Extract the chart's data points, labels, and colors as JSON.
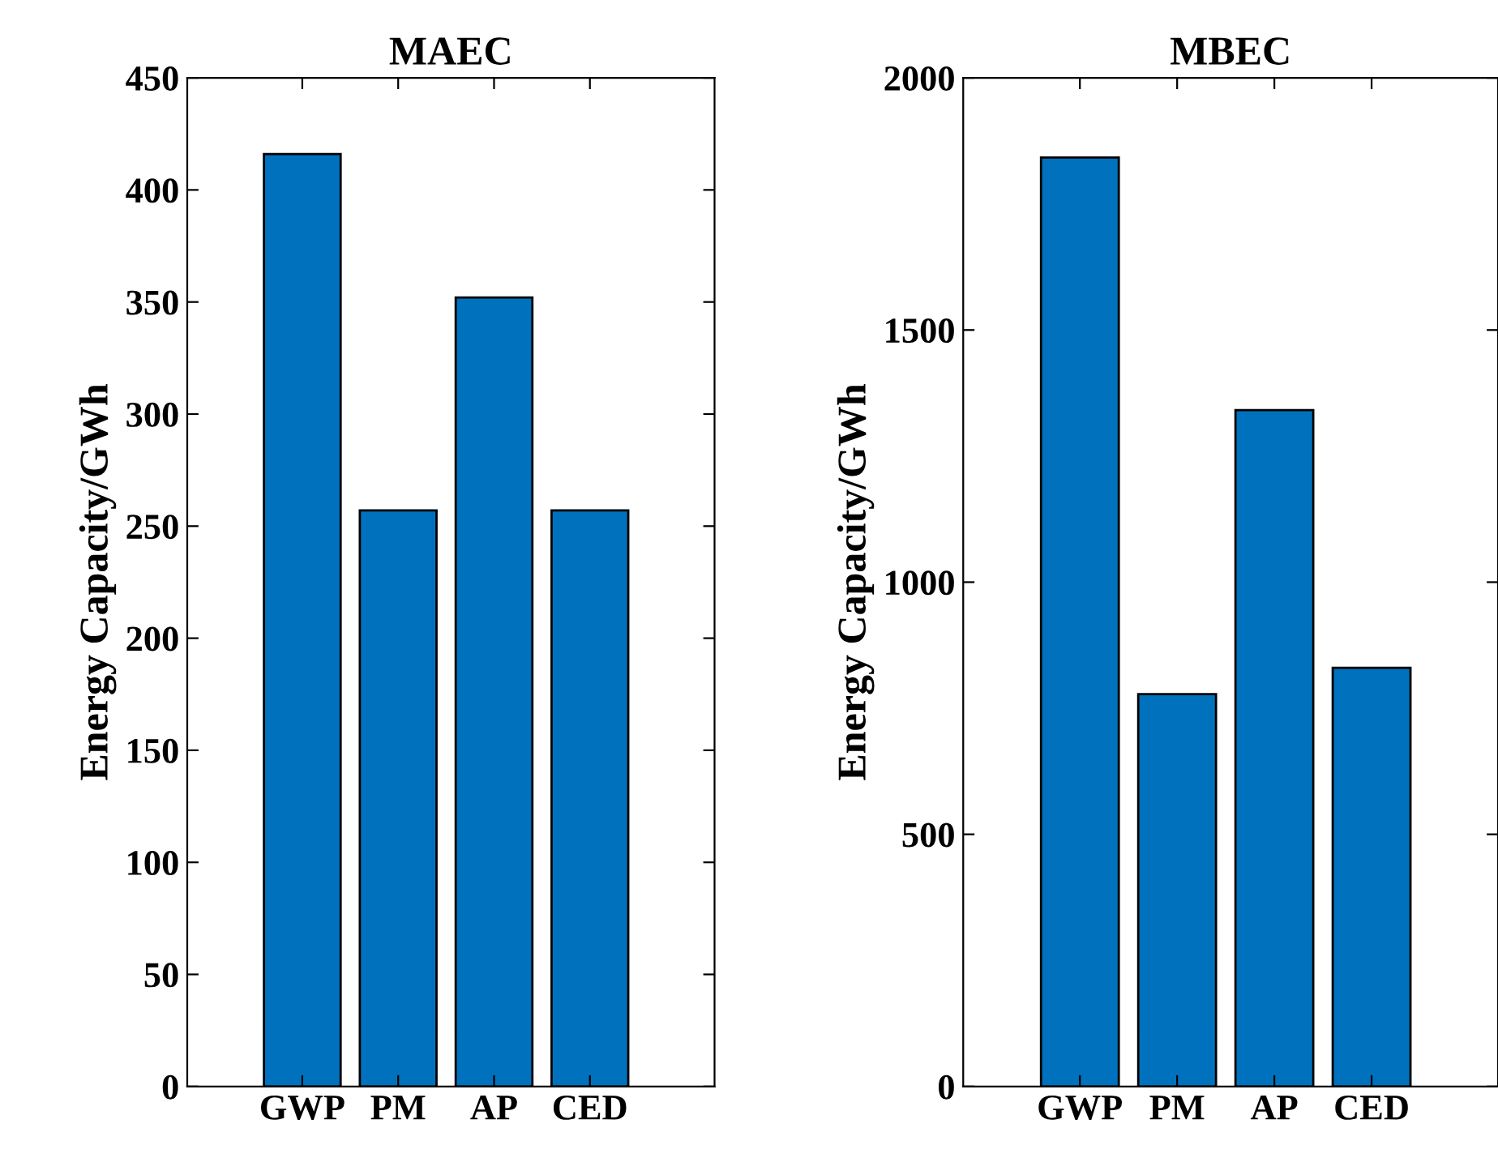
{
  "chart_data": [
    {
      "type": "bar",
      "title": "MAEC",
      "ylabel": "Energy Capacity/GWh",
      "categories": [
        "GWP",
        "PM",
        "AP",
        "CED"
      ],
      "values": [
        416,
        257,
        352,
        257
      ],
      "color": "#0072bd",
      "ylim": [
        0,
        450
      ],
      "yticks": [
        0,
        50,
        100,
        150,
        200,
        250,
        300,
        350,
        400,
        450
      ],
      "grid": false
    },
    {
      "type": "bar",
      "title": "MBEC",
      "ylabel": "Energy Capacity/GWh",
      "categories": [
        "GWP",
        "PM",
        "AP",
        "CED"
      ],
      "values": [
        1842,
        778,
        1341,
        830
      ],
      "color": "#0072bd",
      "ylim": [
        0,
        2000
      ],
      "yticks": [
        0,
        500,
        1000,
        1500,
        2000
      ],
      "grid": false
    }
  ]
}
